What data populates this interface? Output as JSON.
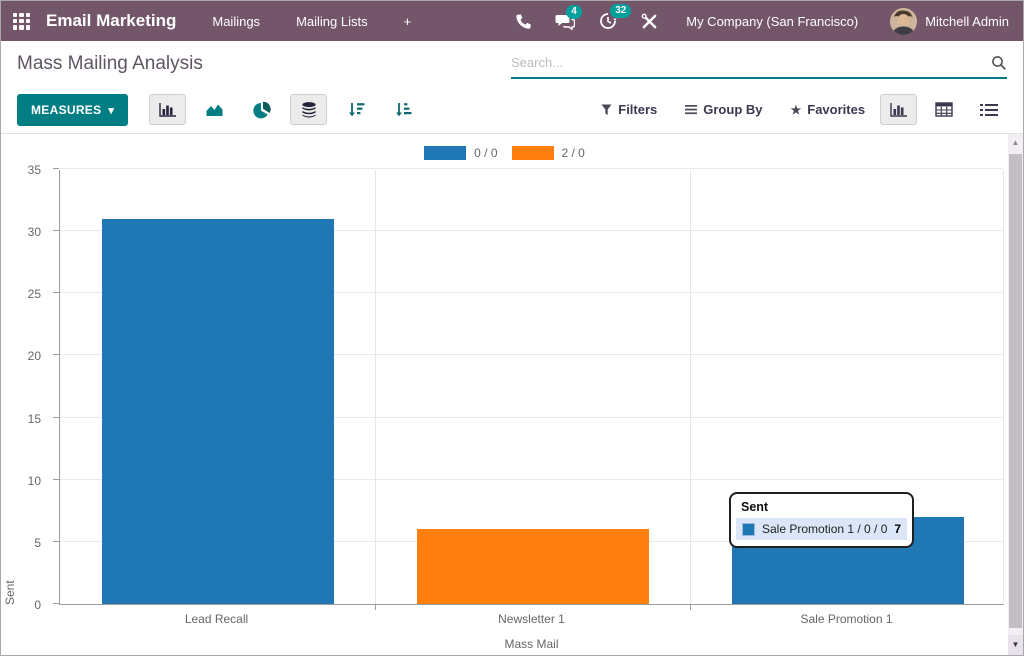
{
  "navbar": {
    "app_name": "Email Marketing",
    "menus": [
      "Mailings",
      "Mailing Lists",
      "+"
    ],
    "messages_badge": "4",
    "activities_badge": "32",
    "company_name": "My Company (San Francisco)",
    "user_name": "Mitchell Admin",
    "colors": {
      "background": "#74566B",
      "badge": "#00A09D"
    }
  },
  "control_panel": {
    "title": "Mass Mailing Analysis",
    "search": {
      "value": "",
      "placeholder": "Search..."
    },
    "measures_button": "MEASURES",
    "chart_type_buttons": [
      "bar-chart",
      "area-chart",
      "pie-chart",
      "stacked",
      "sort-descending",
      "sort-ascending"
    ],
    "active_chart_buttons": [
      "bar-chart",
      "stacked"
    ],
    "filter_menus": {
      "filters": "Filters",
      "group_by": "Group By",
      "favorites": "Favorites"
    },
    "view_switcher": [
      "graph",
      "pivot",
      "list"
    ],
    "active_view": "graph",
    "accent_color": "#017E84"
  },
  "chart_data": {
    "type": "bar",
    "title": "",
    "categories": [
      "Lead Recall",
      "Newsletter 1",
      "Sale Promotion 1"
    ],
    "xlabel": "Mass Mail",
    "ylabel": "Sent",
    "ylim": [
      0,
      35
    ],
    "ytick_step": 5,
    "grid": true,
    "legend_position": "top",
    "series": [
      {
        "name": "0 / 0",
        "color": "#1f77b4",
        "values": [
          31,
          null,
          7
        ]
      },
      {
        "name": "2 / 0",
        "color": "#ff7f0e",
        "values": [
          null,
          6,
          null
        ]
      }
    ],
    "bars": [
      {
        "category": "Lead Recall",
        "series": "0 / 0",
        "value": 31,
        "color": "#1f77b4"
      },
      {
        "category": "Newsletter 1",
        "series": "2 / 0",
        "value": 6,
        "color": "#ff7f0e"
      },
      {
        "category": "Sale Promotion 1",
        "series": "0 / 0",
        "value": 7,
        "color": "#1f77b4"
      }
    ],
    "tooltip": {
      "header": "Sent",
      "rows": [
        {
          "swatch_color": "#1f77b4",
          "label": "Sale Promotion 1 / 0 / 0",
          "value": "7"
        }
      ]
    }
  }
}
